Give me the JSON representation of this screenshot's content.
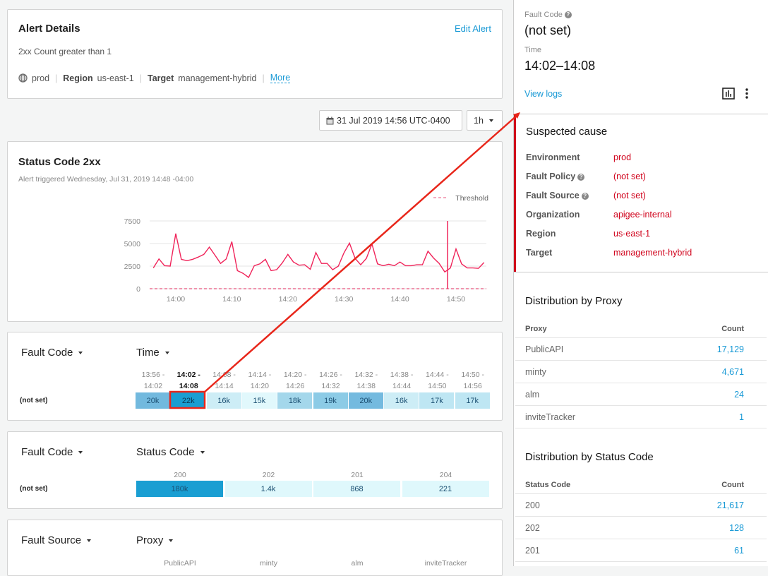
{
  "alert": {
    "title": "Alert Details",
    "edit_label": "Edit Alert",
    "description": "2xx Count greater than 1",
    "environment": "prod",
    "region_label": "Region",
    "region": "us-east-1",
    "target_label": "Target",
    "target": "management-hybrid",
    "more_label": "More"
  },
  "toolbar": {
    "date": "31 Jul 2019 14:56 UTC-0400",
    "range": "1h"
  },
  "chart_card": {
    "title": "Status Code 2xx",
    "subtitle": "Alert triggered Wednesday, Jul 31, 2019 14:48 -04:00"
  },
  "chart_data": {
    "type": "line",
    "x_start": "13:56",
    "x_step_minutes": 1,
    "y": [
      2300,
      3300,
      2550,
      2500,
      6100,
      3250,
      3100,
      3250,
      3500,
      3800,
      4600,
      3700,
      2800,
      3300,
      5200,
      2000,
      1700,
      1250,
      2550,
      2750,
      3250,
      2000,
      2100,
      2850,
      3800,
      2950,
      2600,
      2650,
      2150,
      4000,
      2800,
      2800,
      2100,
      2500,
      3950,
      5050,
      3350,
      2650,
      3350,
      4950,
      2750,
      2550,
      2700,
      2550,
      2950,
      2550,
      2550,
      2650,
      2650,
      4150,
      3400,
      2800,
      1850,
      2300,
      4400,
      2750,
      2300,
      2300,
      2250,
      2900
    ],
    "ylim": [
      0,
      7500
    ],
    "yticks": [
      "0",
      "2500",
      "5000",
      "7500"
    ],
    "xticks": [
      "14:00",
      "14:10",
      "14:20",
      "14:30",
      "14:40",
      "14:50"
    ],
    "threshold": 0,
    "threshold_label": "Threshold",
    "alert_marker": "14:48",
    "line_color": "#f0245a",
    "grid": true,
    "legend": "top-right"
  },
  "heatmap_time": {
    "row_dim": "Fault Code",
    "col_dim": "Time",
    "row_label": "(not set)",
    "columns": [
      {
        "from": "13:56 -",
        "to": "14:02",
        "value": "20k",
        "color": "#72b9de"
      },
      {
        "from": "14:02 -",
        "to": "14:08",
        "value": "22k",
        "color": "#1a9ed2",
        "selected": true
      },
      {
        "from": "14:08 -",
        "to": "14:14",
        "value": "16k",
        "color": "#cdedf6"
      },
      {
        "from": "14:14 -",
        "to": "14:20",
        "value": "15k",
        "color": "#e1f8fc"
      },
      {
        "from": "14:20 -",
        "to": "14:26",
        "value": "18k",
        "color": "#a4d7eb"
      },
      {
        "from": "14:26 -",
        "to": "14:32",
        "value": "19k",
        "color": "#8ccbe6"
      },
      {
        "from": "14:32 -",
        "to": "14:38",
        "value": "20k",
        "color": "#74badf"
      },
      {
        "from": "14:38 -",
        "to": "14:44",
        "value": "16k",
        "color": "#cdedf6"
      },
      {
        "from": "14:44 -",
        "to": "14:50",
        "value": "17k",
        "color": "#bee6f3"
      },
      {
        "from": "14:50 -",
        "to": "14:56",
        "value": "17k",
        "color": "#bee6f3"
      }
    ]
  },
  "heatmap_status": {
    "row_dim": "Fault Code",
    "col_dim": "Status Code",
    "row_label": "(not set)",
    "columns": [
      {
        "label": "200",
        "value": "180k",
        "color": "#1a9ed2"
      },
      {
        "label": "202",
        "value": "1.4k",
        "color": "#dff8fc"
      },
      {
        "label": "201",
        "value": "868",
        "color": "#dff8fc"
      },
      {
        "label": "204",
        "value": "221",
        "color": "#dff8fc"
      }
    ]
  },
  "heatmap_proxy": {
    "row_dim": "Fault Source",
    "col_dim": "Proxy",
    "columns": [
      "PublicAPI",
      "minty",
      "alm",
      "inviteTracker"
    ]
  },
  "detail": {
    "fault_code_label": "Fault Code",
    "fault_code": "(not set)",
    "time_label": "Time",
    "time": "14:02–14:08",
    "view_logs": "View logs"
  },
  "suspected": {
    "title": "Suspected cause",
    "rows": [
      {
        "k": "Environment",
        "v": "prod",
        "help": false
      },
      {
        "k": "Fault Policy",
        "v": "(not set)",
        "help": true
      },
      {
        "k": "Fault Source",
        "v": "(not set)",
        "help": true
      },
      {
        "k": "Organization",
        "v": "apigee-internal",
        "help": false
      },
      {
        "k": "Region",
        "v": "us-east-1",
        "help": false
      },
      {
        "k": "Target",
        "v": "management-hybrid",
        "help": false
      }
    ]
  },
  "dist_proxy": {
    "title": "Distribution by Proxy",
    "col1": "Proxy",
    "col2": "Count",
    "rows": [
      [
        "PublicAPI",
        "17,129"
      ],
      [
        "minty",
        "4,671"
      ],
      [
        "alm",
        "24"
      ],
      [
        "inviteTracker",
        "1"
      ]
    ]
  },
  "dist_status": {
    "title": "Distribution by Status Code",
    "col1": "Status Code",
    "col2": "Count",
    "rows": [
      [
        "200",
        "21,617"
      ],
      [
        "202",
        "128"
      ],
      [
        "201",
        "61"
      ]
    ]
  }
}
